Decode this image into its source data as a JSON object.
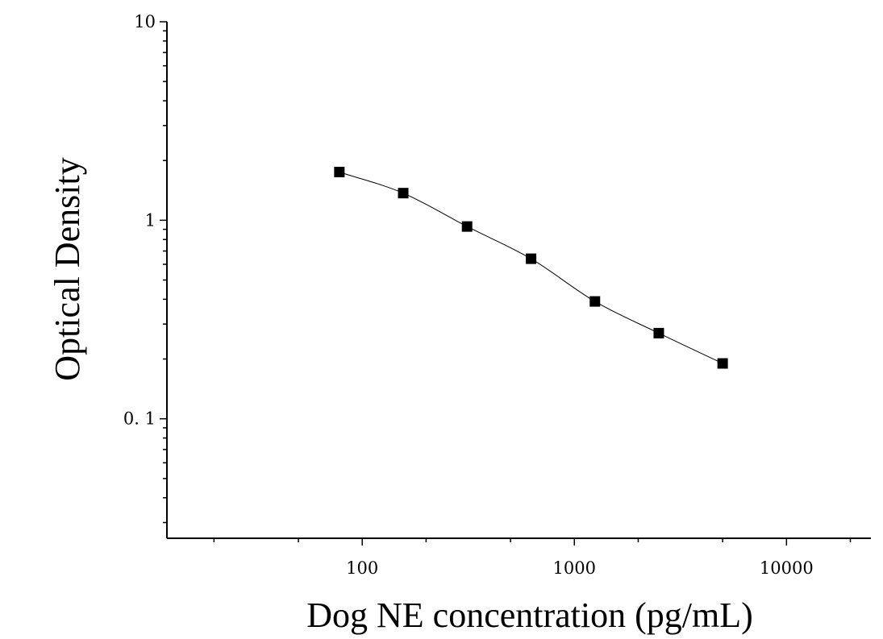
{
  "chart_data": {
    "type": "scatter",
    "title": "",
    "xlabel": "Dog NE concentration (pg/mL)",
    "ylabel": "Optical Density",
    "x_scale": "log",
    "y_scale": "log",
    "xlim": [
      12,
      25000
    ],
    "ylim": [
      0.025,
      10
    ],
    "x_ticks": [
      {
        "value": 100,
        "label": "100"
      },
      {
        "value": 1000,
        "label": "1000"
      },
      {
        "value": 10000,
        "label": "10000"
      }
    ],
    "y_ticks": [
      {
        "value": 0.1,
        "label": "0. 1"
      },
      {
        "value": 1,
        "label": "1"
      },
      {
        "value": 10,
        "label": "10"
      }
    ],
    "grid": false,
    "legend": "none",
    "series": [
      {
        "marker": "square",
        "fit_line": true,
        "color": "#000000",
        "x": [
          78,
          156,
          312,
          625,
          1250,
          2500,
          5000
        ],
        "y": [
          1.75,
          1.37,
          0.93,
          0.64,
          0.39,
          0.27,
          0.19
        ]
      }
    ]
  }
}
